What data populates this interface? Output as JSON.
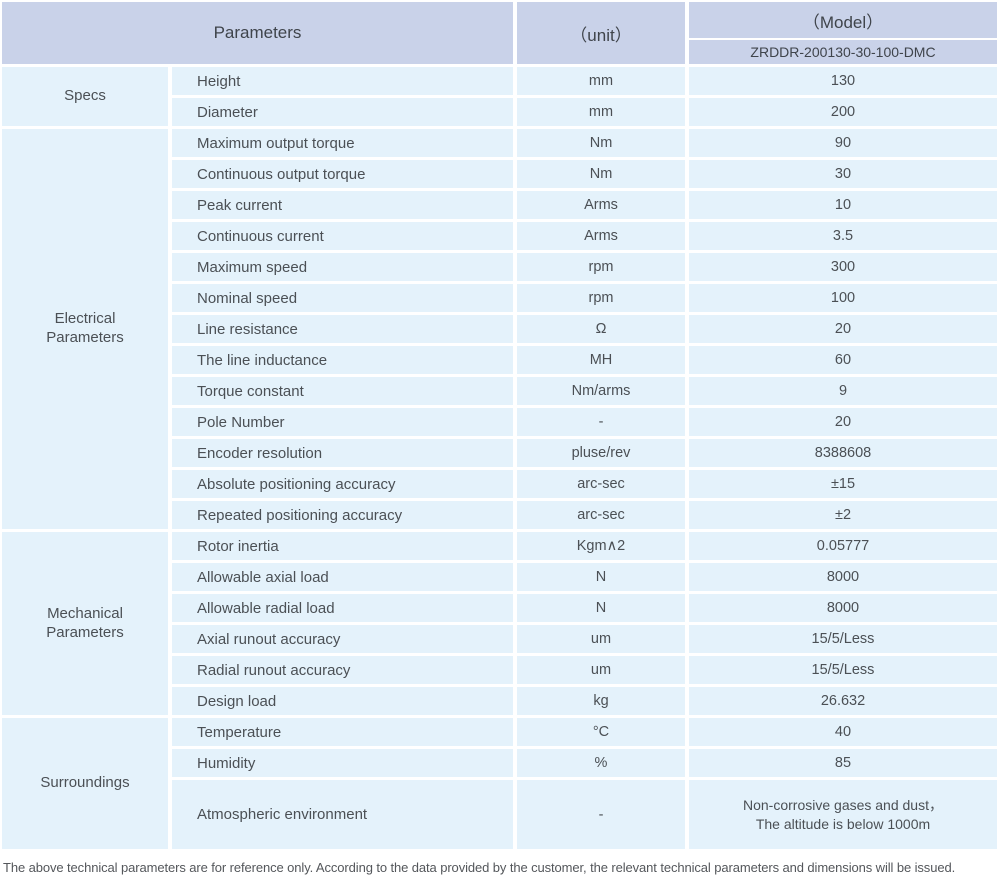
{
  "header": {
    "parameters_label": "Parameters",
    "unit_label": "（unit）",
    "model_label": "（Model）",
    "model_code": "ZRDDR-200130-30-100-DMC"
  },
  "sections": [
    {
      "label": "Specs",
      "rows": [
        {
          "param": "Height",
          "unit": "mm",
          "value": "130"
        },
        {
          "param": "Diameter",
          "unit": "mm",
          "value": "200"
        }
      ]
    },
    {
      "label": "Electrical\nParameters",
      "rows": [
        {
          "param": "Maximum output torque",
          "unit": "Nm",
          "value": "90"
        },
        {
          "param": "Continuous output torque",
          "unit": "Nm",
          "value": "30"
        },
        {
          "param": "Peak current",
          "unit": "Arms",
          "value": "10"
        },
        {
          "param": "Continuous current",
          "unit": "Arms",
          "value": "3.5"
        },
        {
          "param": "Maximum speed",
          "unit": "rpm",
          "value": "300"
        },
        {
          "param": "Nominal speed",
          "unit": "rpm",
          "value": "100"
        },
        {
          "param": "Line resistance",
          "unit": "Ω",
          "value": "20"
        },
        {
          "param": "The line inductance",
          "unit": "MH",
          "value": "60"
        },
        {
          "param": "Torque constant",
          "unit": "Nm/arms",
          "value": "9"
        },
        {
          "param": "Pole Number",
          "unit": "-",
          "value": "20"
        },
        {
          "param": "Encoder resolution",
          "unit": "pluse/rev",
          "value": "8388608"
        },
        {
          "param": "Absolute positioning accuracy",
          "unit": "arc-sec",
          "value": "±15"
        },
        {
          "param": "Repeated positioning accuracy",
          "unit": "arc-sec",
          "value": "±2"
        }
      ]
    },
    {
      "label": "Mechanical\nParameters",
      "rows": [
        {
          "param": "Rotor inertia",
          "unit": "Kgm∧2",
          "value": "0.05777"
        },
        {
          "param": "Allowable axial load",
          "unit": "N",
          "value": "8000"
        },
        {
          "param": "Allowable radial load",
          "unit": "N",
          "value": "8000"
        },
        {
          "param": "Axial runout accuracy",
          "unit": "um",
          "value": "15/5/Less"
        },
        {
          "param": "Radial runout accuracy",
          "unit": "um",
          "value": "15/5/Less"
        },
        {
          "param": "Design load",
          "unit": "kg",
          "value": "26.632"
        }
      ]
    },
    {
      "label": "Surroundings",
      "rows": [
        {
          "param": "Temperature",
          "unit": "°C",
          "value": "40"
        },
        {
          "param": "Humidity",
          "unit": "%",
          "value": "85"
        },
        {
          "param": "Atmospheric environment",
          "unit": "-",
          "value": "Non-corrosive gases and dust，\nThe altitude is below 1000m"
        }
      ]
    }
  ],
  "footer_note": "The above technical parameters are for reference only. According to the data provided by the customer, the relevant technical parameters and dimensions will be issued.",
  "colors": {
    "header_bg": "#c9d2e9",
    "row_bg": "#e4f2fb",
    "separator": "#ffffff"
  }
}
